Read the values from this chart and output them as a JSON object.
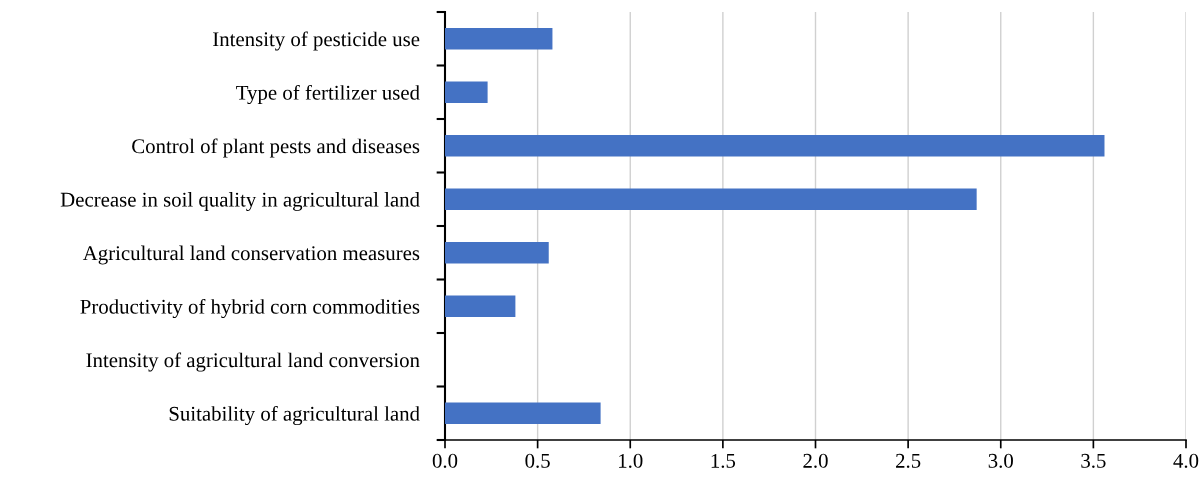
{
  "chart_data": {
    "type": "bar",
    "orientation": "horizontal",
    "categories": [
      "Intensity of pesticide use",
      "Type of fertilizer used",
      "Control of plant pests and diseases",
      "Decrease in soil quality in agricultural land",
      "Agricultural land conservation measures",
      "Productivity of hybrid corn commodities",
      "Intensity of agricultural land conversion",
      "Suitability of agricultural land"
    ],
    "values": [
      0.58,
      0.23,
      3.56,
      2.87,
      0.56,
      0.38,
      0,
      0.84
    ],
    "color": "#4472c4",
    "xlim": [
      0,
      4
    ],
    "xticks": [
      {
        "value": 0,
        "label": "0.0"
      },
      {
        "value": 0.5,
        "label": "0.5"
      },
      {
        "value": 1,
        "label": "1.0"
      },
      {
        "value": 1.5,
        "label": "1.5"
      },
      {
        "value": 2,
        "label": "2.0"
      },
      {
        "value": 2.5,
        "label": "2.5"
      },
      {
        "value": 3,
        "label": "3.0"
      },
      {
        "value": 3.5,
        "label": "3.5"
      },
      {
        "value": 4,
        "label": "4.0"
      }
    ],
    "grid": "x"
  }
}
